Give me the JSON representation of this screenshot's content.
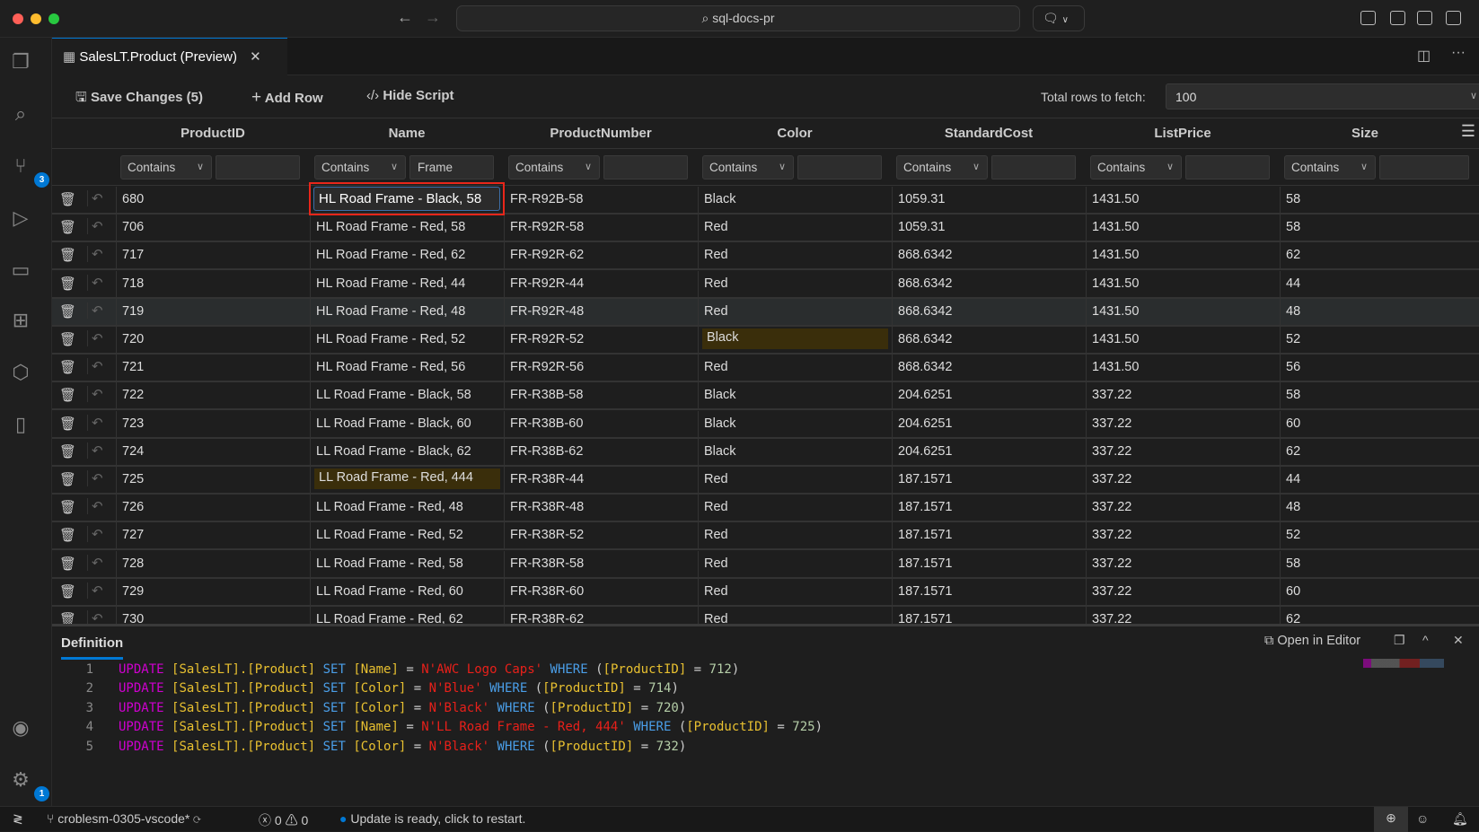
{
  "titlebar": {
    "search": "sql-docs-pr"
  },
  "activity": {
    "source_control_badge": "3",
    "settings_badge": "1"
  },
  "tab": {
    "title": "SalesLT.Product (Preview)"
  },
  "toolbar": {
    "save": "Save Changes (5)",
    "add_row": "Add Row",
    "hide_script": "Hide Script",
    "fetch_label": "Total rows to fetch:",
    "fetch_value": "100"
  },
  "grid": {
    "columns": [
      "ProductID",
      "Name",
      "ProductNumber",
      "Color",
      "StandardCost",
      "ListPrice",
      "Size"
    ],
    "filters": [
      {
        "op": "Contains",
        "value": ""
      },
      {
        "op": "Contains",
        "value": "Frame"
      },
      {
        "op": "Contains",
        "value": ""
      },
      {
        "op": "Contains",
        "value": ""
      },
      {
        "op": "Contains",
        "value": ""
      },
      {
        "op": "Contains",
        "value": ""
      },
      {
        "op": "Contains",
        "value": ""
      }
    ],
    "editing_value": "HL Road Frame - Black, 58",
    "modified_color": "#3a2e0b",
    "rows": [
      [
        "680",
        "HL Road Frame - Black, 58",
        "FR-R92B-58",
        "Black",
        "1059.31",
        "1431.50",
        "58"
      ],
      [
        "706",
        "HL Road Frame - Red, 58",
        "FR-R92R-58",
        "Red",
        "1059.31",
        "1431.50",
        "58"
      ],
      [
        "717",
        "HL Road Frame - Red, 62",
        "FR-R92R-62",
        "Red",
        "868.6342",
        "1431.50",
        "62"
      ],
      [
        "718",
        "HL Road Frame - Red, 44",
        "FR-R92R-44",
        "Red",
        "868.6342",
        "1431.50",
        "44"
      ],
      [
        "719",
        "HL Road Frame - Red, 48",
        "FR-R92R-48",
        "Red",
        "868.6342",
        "1431.50",
        "48"
      ],
      [
        "720",
        "HL Road Frame - Red, 52",
        "FR-R92R-52",
        "Black",
        "868.6342",
        "1431.50",
        "52"
      ],
      [
        "721",
        "HL Road Frame - Red, 56",
        "FR-R92R-56",
        "Red",
        "868.6342",
        "1431.50",
        "56"
      ],
      [
        "722",
        "LL Road Frame - Black, 58",
        "FR-R38B-58",
        "Black",
        "204.6251",
        "337.22",
        "58"
      ],
      [
        "723",
        "LL Road Frame - Black, 60",
        "FR-R38B-60",
        "Black",
        "204.6251",
        "337.22",
        "60"
      ],
      [
        "724",
        "LL Road Frame - Black, 62",
        "FR-R38B-62",
        "Black",
        "204.6251",
        "337.22",
        "62"
      ],
      [
        "725",
        "LL Road Frame - Red, 444",
        "FR-R38R-44",
        "Red",
        "187.1571",
        "337.22",
        "44"
      ],
      [
        "726",
        "LL Road Frame - Red, 48",
        "FR-R38R-48",
        "Red",
        "187.1571",
        "337.22",
        "48"
      ],
      [
        "727",
        "LL Road Frame - Red, 52",
        "FR-R38R-52",
        "Red",
        "187.1571",
        "337.22",
        "52"
      ],
      [
        "728",
        "LL Road Frame - Red, 58",
        "FR-R38R-58",
        "Red",
        "187.1571",
        "337.22",
        "58"
      ],
      [
        "729",
        "LL Road Frame - Red, 60",
        "FR-R38R-60",
        "Red",
        "187.1571",
        "337.22",
        "60"
      ],
      [
        "730",
        "LL Road Frame - Red, 62",
        "FR-R38R-62",
        "Red",
        "187.1571",
        "337.22",
        "62"
      ]
    ],
    "modified_cells": [
      [
        5,
        3
      ],
      [
        10,
        1
      ]
    ],
    "selected_row": 4
  },
  "definition": {
    "title": "Definition",
    "open_in_editor": "Open in Editor",
    "lines": [
      {
        "n": "1",
        "col": "[Name]",
        "val": "N'AWC Logo Caps'",
        "id": "712"
      },
      {
        "n": "2",
        "col": "[Color]",
        "val": "N'Blue'",
        "id": "714"
      },
      {
        "n": "3",
        "col": "[Color]",
        "val": "N'Black'",
        "id": "720"
      },
      {
        "n": "4",
        "col": "[Name]",
        "val": "N'LL Road Frame - Red, 444'",
        "id": "725"
      },
      {
        "n": "5",
        "col": "[Color]",
        "val": "N'Black'",
        "id": "732"
      }
    ],
    "tokens": {
      "update": "UPDATE",
      "table": "[SalesLT].[Product]",
      "set": "SET",
      "where": "WHERE",
      "pk": "[ProductID]"
    }
  },
  "status": {
    "branch": "croblesm-0305-vscode*",
    "errors": "0",
    "warnings": "0",
    "message": "Update is ready, click to restart."
  }
}
